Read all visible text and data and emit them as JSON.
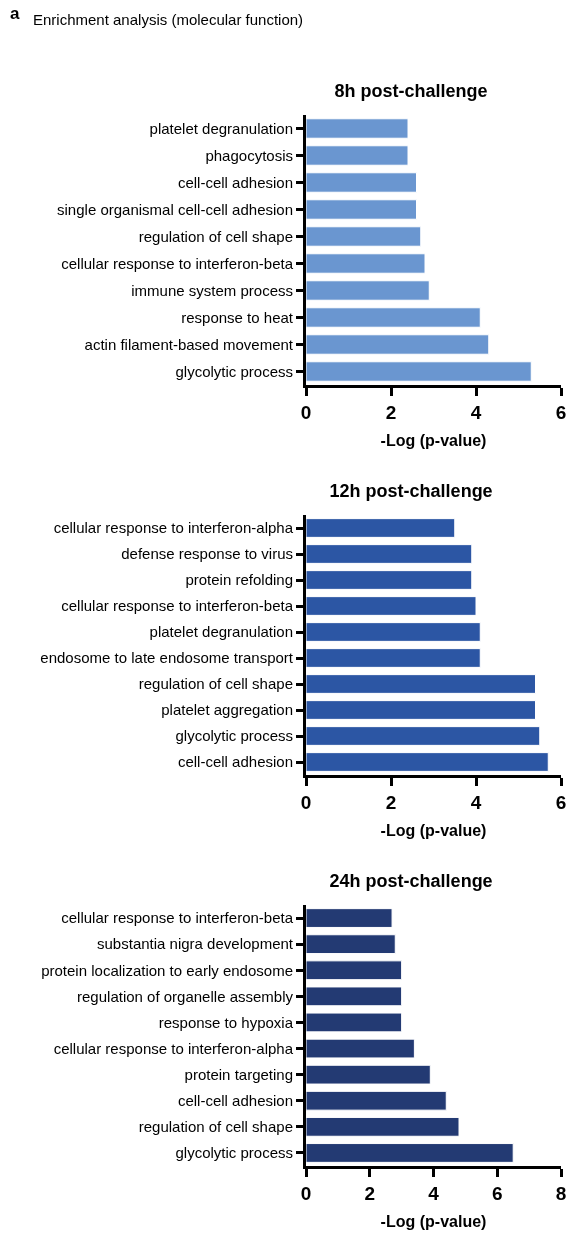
{
  "chart_data": [
    {
      "type": "bar",
      "orientation": "horizontal",
      "title": "8h post-challenge",
      "xlabel": "-Log (p-value)",
      "annotations": [
        "a",
        "Enrichment analysis (molecular function)"
      ],
      "categories": [
        "platelet degranulation",
        "phagocytosis",
        "cell-cell adhesion",
        "single organismal cell-cell adhesion",
        "regulation of cell shape",
        "cellular response to interferon-beta",
        "immune system process",
        "response to heat",
        "actin filament-based movement",
        "glycolytic process"
      ],
      "values": [
        2.4,
        2.4,
        2.6,
        2.6,
        2.7,
        2.8,
        2.9,
        4.1,
        4.3,
        5.3
      ],
      "color": "#6a96d0",
      "xlim": [
        0,
        6
      ],
      "xticks": [
        0,
        2,
        4,
        6
      ]
    },
    {
      "type": "bar",
      "orientation": "horizontal",
      "title": "12h post-challenge",
      "xlabel": "-Log (p-value)",
      "categories": [
        "cellular response to interferon-alpha",
        "defense response to virus",
        "protein refolding",
        "cellular response to interferon-beta",
        "platelet degranulation",
        "endosome to late endosome transport",
        "regulation of cell shape",
        "platelet aggregation",
        "glycolytic process",
        "cell-cell adhesion"
      ],
      "values": [
        3.5,
        3.9,
        3.9,
        4.0,
        4.1,
        4.1,
        5.4,
        5.4,
        5.5,
        5.7
      ],
      "color": "#2c56a4",
      "xlim": [
        0,
        6
      ],
      "xticks": [
        0,
        2,
        4,
        6
      ]
    },
    {
      "type": "bar",
      "orientation": "horizontal",
      "title": "24h post-challenge",
      "xlabel": "-Log (p-value)",
      "categories": [
        "cellular response to interferon-beta",
        "substantia nigra development",
        "protein localization to early endosome",
        "regulation of organelle assembly",
        "response to hypoxia",
        "cellular response to interferon-alpha",
        "protein targeting",
        "cell-cell adhesion",
        "regulation of cell shape",
        "glycolytic process"
      ],
      "values": [
        2.7,
        2.8,
        3.0,
        3.0,
        3.0,
        3.4,
        3.9,
        4.4,
        4.8,
        6.5
      ],
      "color": "#233a73",
      "xlim": [
        0,
        8
      ],
      "xticks": [
        0,
        2,
        4,
        6,
        8
      ]
    }
  ]
}
